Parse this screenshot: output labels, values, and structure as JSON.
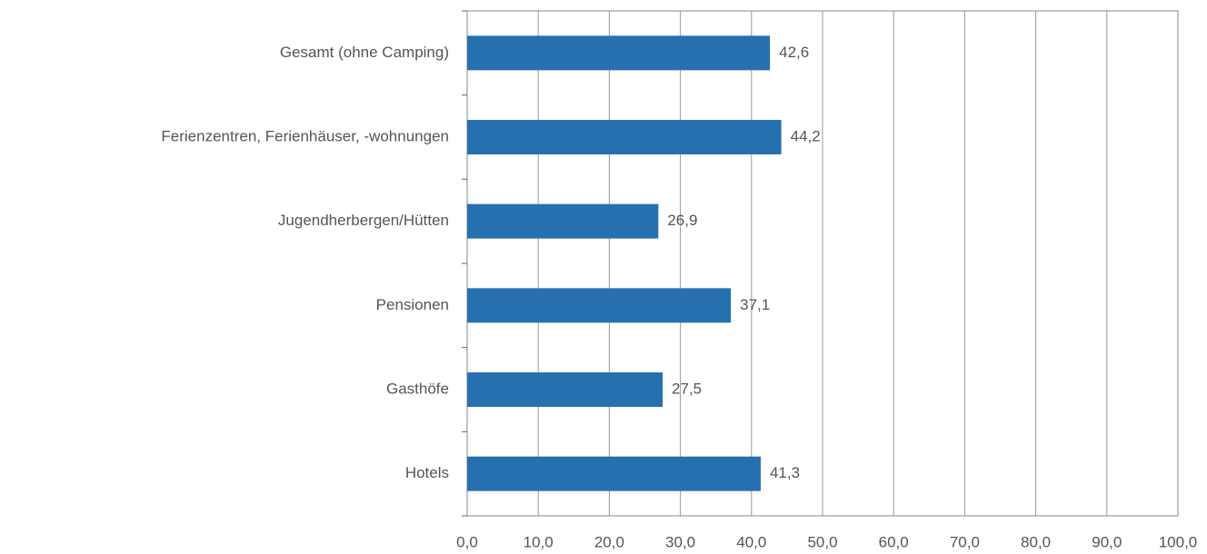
{
  "chart_data": {
    "type": "bar",
    "orientation": "horizontal",
    "categories": [
      "Gesamt (ohne Camping)",
      "Ferienzentren, Ferienhäuser, -wohnungen",
      "Jugendherbergen/Hütten",
      "Pensionen",
      "Gasthöfe",
      "Hotels"
    ],
    "values": [
      42.6,
      44.2,
      26.9,
      37.1,
      27.5,
      41.3
    ],
    "value_labels": [
      "42,6",
      "44,2",
      "26,9",
      "37,1",
      "27,5",
      "41,3"
    ],
    "color": "#2770b0",
    "xlim": [
      0,
      100
    ],
    "xticks": [
      {
        "value": 0,
        "label": "0,0"
      },
      {
        "value": 10,
        "label": "10,0"
      },
      {
        "value": 20,
        "label": "20,0"
      },
      {
        "value": 30,
        "label": "30,0"
      },
      {
        "value": 40,
        "label": "40,0"
      },
      {
        "value": 50,
        "label": "50,0"
      },
      {
        "value": 60,
        "label": "60,0"
      },
      {
        "value": 70,
        "label": "70,0"
      },
      {
        "value": 80,
        "label": "80,0"
      },
      {
        "value": 90,
        "label": "90,0"
      },
      {
        "value": 100,
        "label": "100,0"
      }
    ],
    "grid": true
  }
}
